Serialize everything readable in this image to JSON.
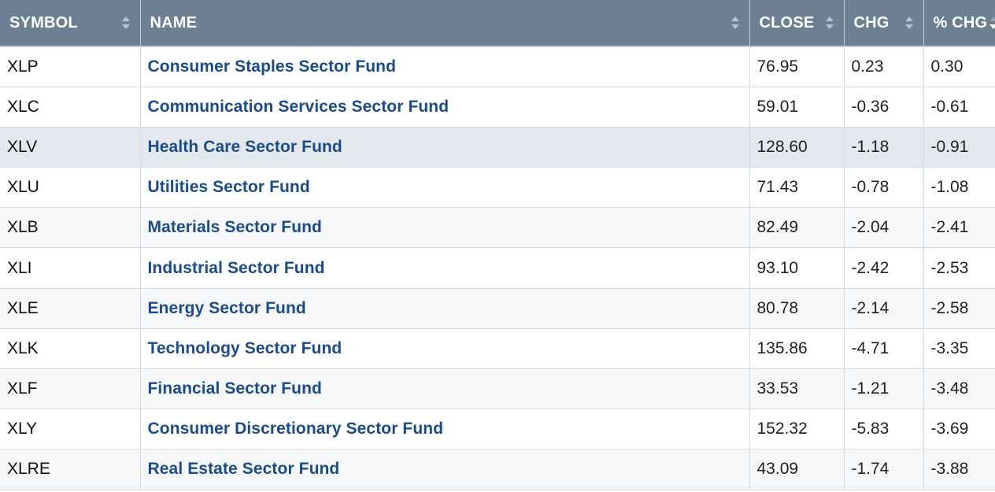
{
  "headers": {
    "symbol": "SYMBOL",
    "name": "NAME",
    "close": "CLOSE",
    "chg": "CHG",
    "pct_chg": "% CHG"
  },
  "icons": {
    "sort": "sort-icon",
    "sort_down": "sort-down-icon"
  },
  "colors": {
    "header_bg": "#6d7f92",
    "name_link": "#1a4b8a",
    "highlight_row": "#e3e8ee"
  },
  "rows": [
    {
      "symbol": "XLP",
      "name": "Consumer Staples Sector Fund",
      "close": "76.95",
      "chg": "0.23",
      "pct_chg": "0.30"
    },
    {
      "symbol": "XLC",
      "name": "Communication Services Sector Fund",
      "close": "59.01",
      "chg": "-0.36",
      "pct_chg": "-0.61"
    },
    {
      "symbol": "XLV",
      "name": "Health Care Sector Fund",
      "close": "128.60",
      "chg": "-1.18",
      "pct_chg": "-0.91"
    },
    {
      "symbol": "XLU",
      "name": "Utilities Sector Fund",
      "close": "71.43",
      "chg": "-0.78",
      "pct_chg": "-1.08"
    },
    {
      "symbol": "XLB",
      "name": "Materials Sector Fund",
      "close": "82.49",
      "chg": "-2.04",
      "pct_chg": "-2.41"
    },
    {
      "symbol": "XLI",
      "name": "Industrial Sector Fund",
      "close": "93.10",
      "chg": "-2.42",
      "pct_chg": "-2.53"
    },
    {
      "symbol": "XLE",
      "name": "Energy Sector Fund",
      "close": "80.78",
      "chg": "-2.14",
      "pct_chg": "-2.58"
    },
    {
      "symbol": "XLK",
      "name": "Technology Sector Fund",
      "close": "135.86",
      "chg": "-4.71",
      "pct_chg": "-3.35"
    },
    {
      "symbol": "XLF",
      "name": "Financial Sector Fund",
      "close": "33.53",
      "chg": "-1.21",
      "pct_chg": "-3.48"
    },
    {
      "symbol": "XLY",
      "name": "Consumer Discretionary Sector Fund",
      "close": "152.32",
      "chg": "-5.83",
      "pct_chg": "-3.69"
    },
    {
      "symbol": "XLRE",
      "name": "Real Estate Sector Fund",
      "close": "43.09",
      "chg": "-1.74",
      "pct_chg": "-3.88"
    }
  ]
}
